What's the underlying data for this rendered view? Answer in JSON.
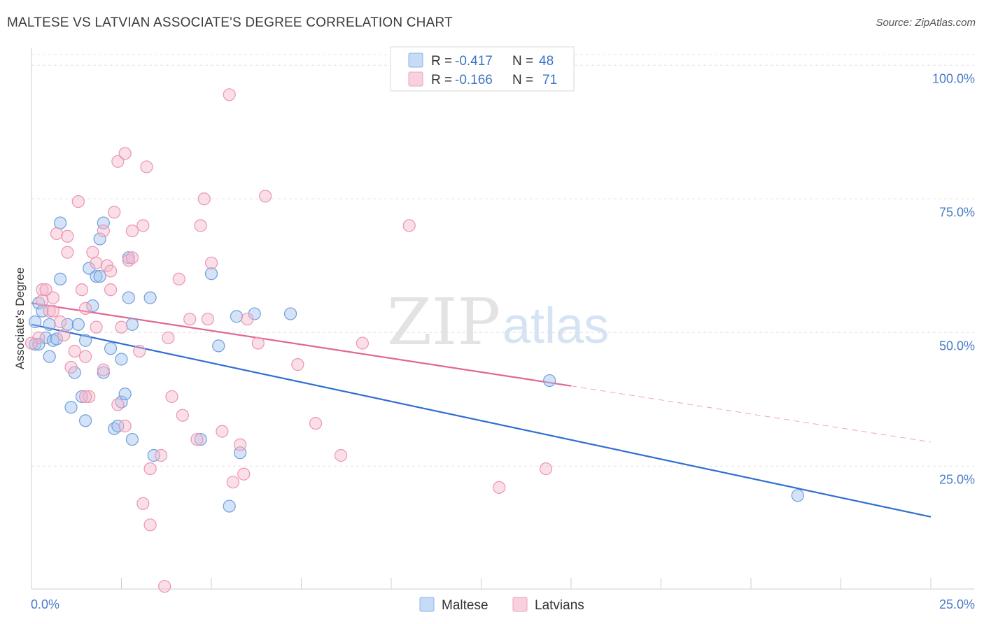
{
  "header": {
    "title": "MALTESE VS LATVIAN ASSOCIATE'S DEGREE CORRELATION CHART",
    "source": "Source: ZipAtlas.com"
  },
  "watermark": {
    "zip": "ZIP",
    "atlas": "atlas"
  },
  "legend": {
    "rows": [
      {
        "r_label": "R = ",
        "r_value": "-0.417",
        "n_label": "N = ",
        "n_value": "48",
        "color": "#9fc2ef"
      },
      {
        "r_label": "R = ",
        "r_value": "-0.166",
        "n_label": "N = ",
        "n_value": "71",
        "color": "#f5b8cc"
      }
    ]
  },
  "chart_data": {
    "type": "scatter",
    "ylabel": "Associate's Degree",
    "xlim": [
      0,
      25
    ],
    "ylim": [
      2,
      102
    ],
    "x_tick_labels": [
      "0.0%",
      "25.0%"
    ],
    "y_ticks": [
      {
        "value": 100,
        "label": "100.0%"
      },
      {
        "value": 75,
        "label": "75.0%"
      },
      {
        "value": 50,
        "label": "50.0%"
      },
      {
        "value": 25,
        "label": "25.0%"
      }
    ],
    "grid": true,
    "legend_position": "top-center",
    "series": [
      {
        "name": "Maltese",
        "color": "#9fc2ef",
        "stroke": "#6f9fdc",
        "trend_color": "#2f6fd0",
        "trend": {
          "x0": 0,
          "y0": 51.5,
          "x1": 25,
          "y1": 15.5
        },
        "points": [
          [
            0.1,
            47.8
          ],
          [
            0.1,
            52
          ],
          [
            0.2,
            55.5
          ],
          [
            0.3,
            54
          ],
          [
            0.4,
            49
          ],
          [
            0.5,
            45.5
          ],
          [
            0.6,
            48.5
          ],
          [
            0.7,
            48.8
          ],
          [
            0.8,
            70.5
          ],
          [
            0.8,
            60
          ],
          [
            1.0,
            51.5
          ],
          [
            1.1,
            36
          ],
          [
            1.2,
            42.5
          ],
          [
            1.3,
            51.5
          ],
          [
            1.4,
            38
          ],
          [
            1.5,
            48.5
          ],
          [
            1.5,
            33.5
          ],
          [
            1.6,
            62
          ],
          [
            1.7,
            55
          ],
          [
            1.8,
            60.5
          ],
          [
            1.9,
            60.5
          ],
          [
            1.9,
            67.5
          ],
          [
            2.0,
            42.5
          ],
          [
            2.0,
            70.5
          ],
          [
            2.2,
            47
          ],
          [
            2.3,
            32
          ],
          [
            2.4,
            32.5
          ],
          [
            2.5,
            37
          ],
          [
            2.5,
            45
          ],
          [
            2.6,
            38.5
          ],
          [
            2.7,
            64
          ],
          [
            2.7,
            56.5
          ],
          [
            2.8,
            30
          ],
          [
            2.8,
            51.5
          ],
          [
            3.3,
            56.5
          ],
          [
            3.4,
            27
          ],
          [
            4.7,
            30
          ],
          [
            5.0,
            61
          ],
          [
            5.2,
            47.5
          ],
          [
            5.5,
            17.5
          ],
          [
            5.7,
            53
          ],
          [
            5.8,
            27.5
          ],
          [
            6.2,
            53.5
          ],
          [
            7.2,
            53.5
          ],
          [
            0.5,
            51.5
          ],
          [
            0.2,
            47.8
          ],
          [
            14.4,
            41
          ],
          [
            21.3,
            19.5
          ]
        ]
      },
      {
        "name": "Latvians",
        "color": "#f5b8cc",
        "stroke": "#ec95b0",
        "trend_color": "#e06890",
        "trend": {
          "x0": 0,
          "y0": 55.5,
          "x1": 15.0,
          "y1": 40
        },
        "trend_ext": {
          "x0": 15.0,
          "y0": 40,
          "x1": 25,
          "y1": 29.5
        },
        "points": [
          [
            0.2,
            49
          ],
          [
            0.3,
            58
          ],
          [
            0.3,
            56
          ],
          [
            0.4,
            58
          ],
          [
            0.5,
            54
          ],
          [
            0.6,
            56.5
          ],
          [
            0.7,
            68.5
          ],
          [
            0.8,
            52
          ],
          [
            0.9,
            49.5
          ],
          [
            1.0,
            68
          ],
          [
            1.0,
            65
          ],
          [
            1.1,
            43.5
          ],
          [
            1.2,
            46.5
          ],
          [
            1.3,
            74.5
          ],
          [
            1.4,
            58
          ],
          [
            1.5,
            54.5
          ],
          [
            1.5,
            45.5
          ],
          [
            1.6,
            38
          ],
          [
            1.7,
            65
          ],
          [
            1.8,
            63
          ],
          [
            1.8,
            51
          ],
          [
            2.0,
            43
          ],
          [
            2.0,
            69
          ],
          [
            2.1,
            62.5
          ],
          [
            2.2,
            58
          ],
          [
            2.2,
            61.5
          ],
          [
            2.3,
            72.5
          ],
          [
            2.4,
            36.5
          ],
          [
            2.4,
            82
          ],
          [
            2.5,
            51
          ],
          [
            2.6,
            32.5
          ],
          [
            2.6,
            83.5
          ],
          [
            2.7,
            63.5
          ],
          [
            2.8,
            69
          ],
          [
            3.0,
            46.5
          ],
          [
            3.1,
            70
          ],
          [
            3.1,
            18
          ],
          [
            3.2,
            81
          ],
          [
            3.3,
            14
          ],
          [
            3.3,
            24.5
          ],
          [
            3.6,
            27
          ],
          [
            3.8,
            49
          ],
          [
            3.9,
            38
          ],
          [
            3.7,
            2.5
          ],
          [
            4.1,
            60
          ],
          [
            4.2,
            34.5
          ],
          [
            4.4,
            52.5
          ],
          [
            4.6,
            30
          ],
          [
            4.7,
            70
          ],
          [
            4.8,
            75
          ],
          [
            4.9,
            52.5
          ],
          [
            5.0,
            63
          ],
          [
            5.3,
            31.5
          ],
          [
            5.5,
            94.5
          ],
          [
            5.6,
            22
          ],
          [
            5.8,
            29
          ],
          [
            5.9,
            23.5
          ],
          [
            6.0,
            52.5
          ],
          [
            6.3,
            48
          ],
          [
            6.5,
            75.5
          ],
          [
            7.4,
            44
          ],
          [
            7.9,
            33
          ],
          [
            8.6,
            27
          ],
          [
            9.2,
            48
          ],
          [
            10.5,
            70
          ],
          [
            13.0,
            21
          ],
          [
            14.3,
            24.5
          ],
          [
            0.0,
            48
          ],
          [
            1.5,
            38
          ],
          [
            2.8,
            64
          ],
          [
            0.6,
            54
          ]
        ]
      }
    ]
  }
}
